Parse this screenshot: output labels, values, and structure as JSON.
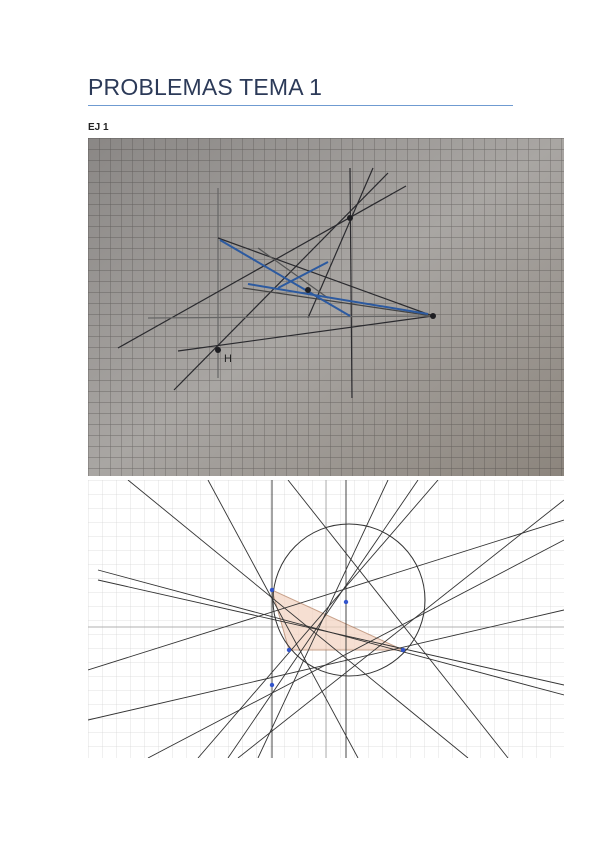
{
  "header": {
    "title": "PROBLEMAS TEMA 1"
  },
  "section": {
    "label": "EJ 1"
  },
  "photo": {
    "label": "H"
  }
}
